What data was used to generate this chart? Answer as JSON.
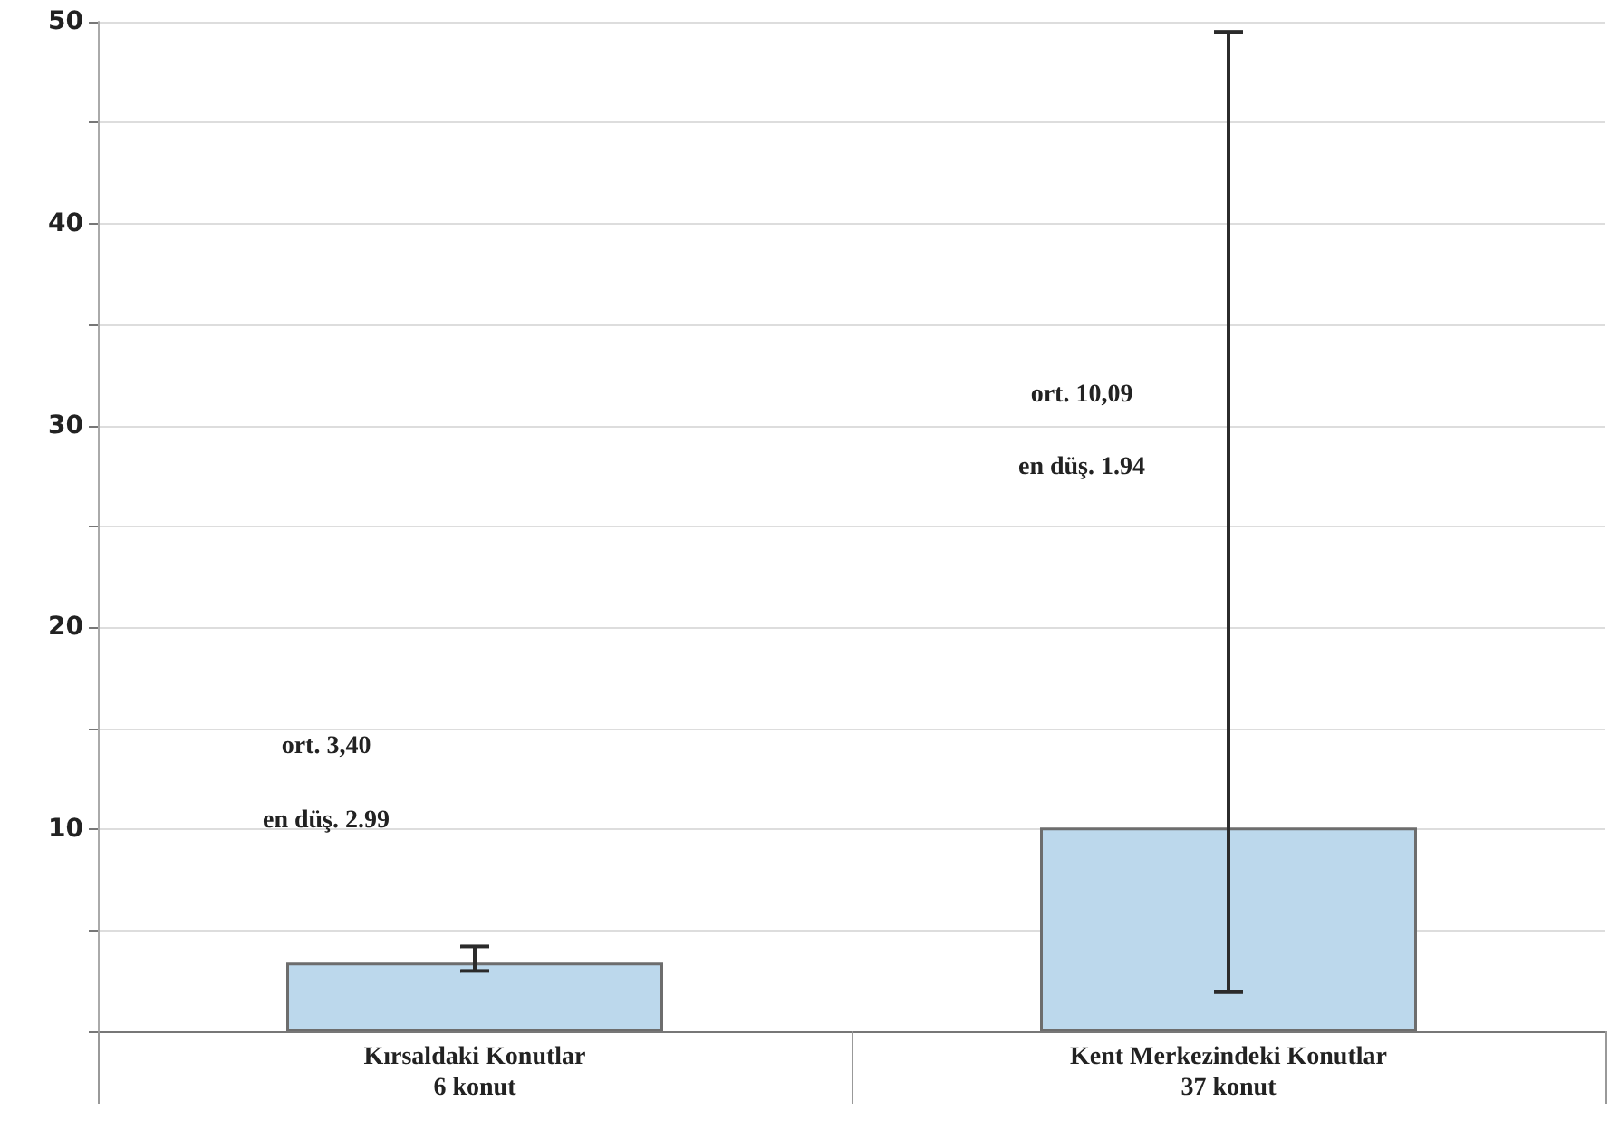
{
  "chart_data": {
    "type": "bar",
    "categories": [
      "Kırsaldaki Konutlar\n6 konut",
      "Kent Merkezindeki Konutlar\n37 konut"
    ],
    "values": [
      3.4,
      10.09
    ],
    "errors": [
      [
        2.99,
        4.2
      ],
      [
        1.94,
        49.5
      ]
    ],
    "color": "#bcd8ec",
    "ylim": [
      0,
      50
    ],
    "yticks": [
      {
        "value": 0,
        "label": null
      },
      {
        "value": 5,
        "label": null
      },
      10,
      {
        "value": 15,
        "label": null
      },
      20,
      {
        "value": 25,
        "label": null
      },
      30,
      {
        "value": 35,
        "label": null
      },
      40,
      {
        "value": 45,
        "label": null
      },
      50
    ],
    "grid": true,
    "annotations": [
      "ort. 3,40",
      "en düş. 2.99",
      "ort. 10,09",
      "en düş. 1.94"
    ]
  }
}
